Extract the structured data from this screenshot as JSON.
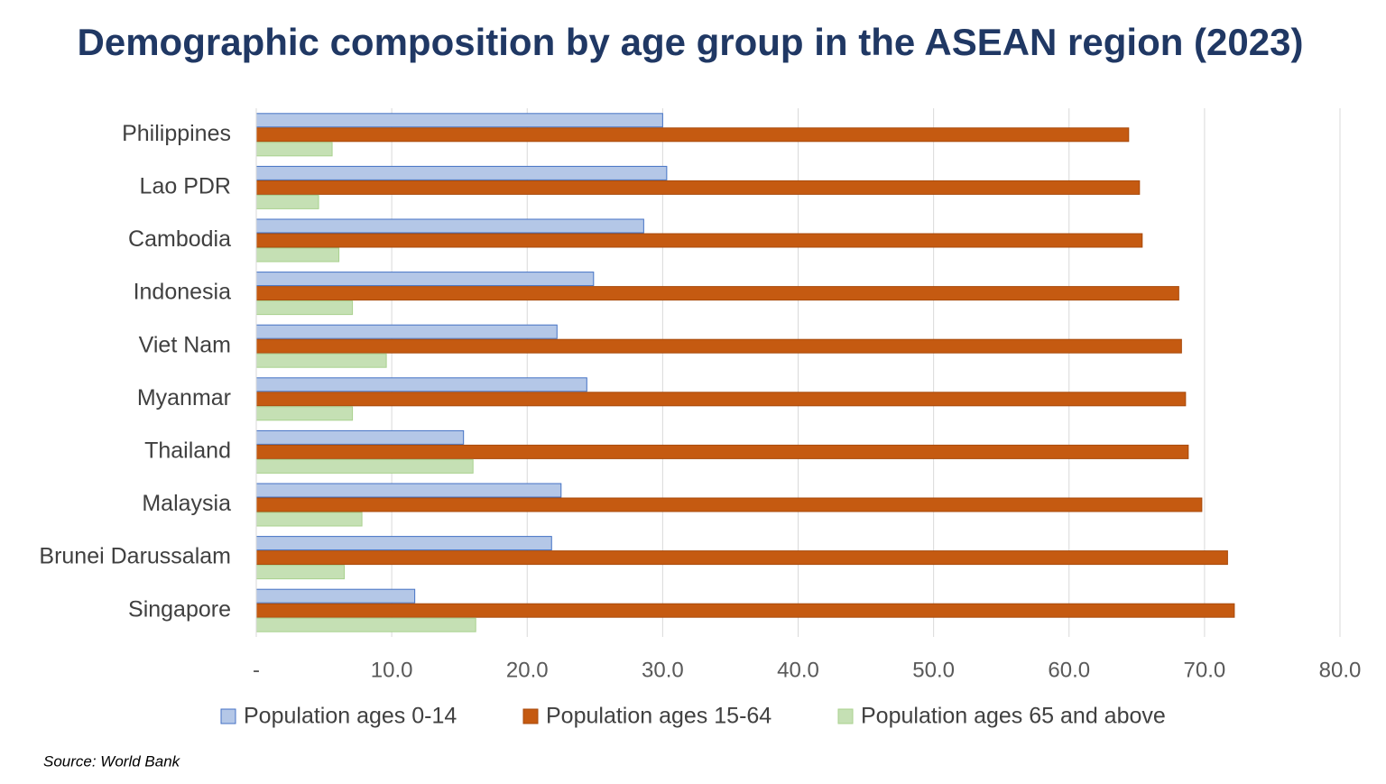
{
  "chart_data": {
    "type": "bar",
    "orientation": "horizontal",
    "title": "Demographic composition by age group in the ASEAN region (2023)",
    "source": "Source: World Bank",
    "categories": [
      "Philippines",
      "Lao PDR",
      "Cambodia",
      "Indonesia",
      "Viet Nam",
      "Myanmar",
      "Thailand",
      "Malaysia",
      "Brunei Darussalam",
      "Singapore"
    ],
    "series": [
      {
        "name": "Population ages 0-14",
        "color": "#b4c7e7",
        "stroke": "#4472c4",
        "values": [
          30.0,
          30.3,
          28.6,
          24.9,
          22.2,
          24.4,
          15.3,
          22.5,
          21.8,
          11.7
        ]
      },
      {
        "name": "Population ages 15-64",
        "color": "#c55a11",
        "stroke": "#a84a0c",
        "values": [
          64.4,
          65.2,
          65.4,
          68.1,
          68.3,
          68.6,
          68.8,
          69.8,
          71.7,
          72.2
        ]
      },
      {
        "name": "Population ages 65 and above",
        "color": "#c5e0b4",
        "stroke": "#a9d18e",
        "values": [
          5.6,
          4.6,
          6.1,
          7.1,
          9.6,
          7.1,
          16.0,
          7.8,
          6.5,
          16.2
        ]
      }
    ],
    "xlim": [
      0,
      80
    ],
    "xticks": [
      {
        "value": 0,
        "label": "-"
      },
      {
        "value": 10,
        "label": "10.0"
      },
      {
        "value": 20,
        "label": "20.0"
      },
      {
        "value": 30,
        "label": "30.0"
      },
      {
        "value": 40,
        "label": "40.0"
      },
      {
        "value": 50,
        "label": "50.0"
      },
      {
        "value": 60,
        "label": "60.0"
      },
      {
        "value": 70,
        "label": "70.0"
      },
      {
        "value": 80,
        "label": "80.0"
      }
    ],
    "grid": true,
    "legend": "bottom"
  }
}
